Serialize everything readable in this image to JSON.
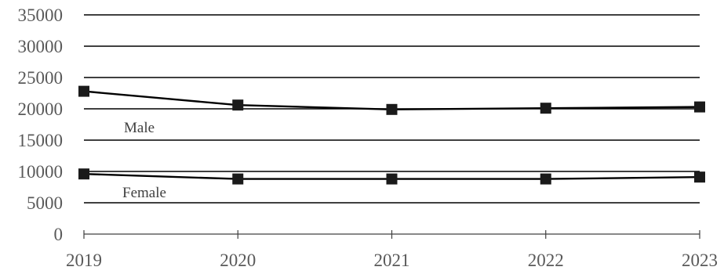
{
  "chart_data": {
    "type": "line",
    "x": [
      2019,
      2020,
      2021,
      2022,
      2023
    ],
    "x_tick_labels": [
      "2019",
      "2020",
      "2021",
      "2022",
      "2023"
    ],
    "y_tick_labels": [
      "0",
      "5000",
      "10000",
      "15000",
      "20000",
      "25000",
      "30000",
      "35000"
    ],
    "ylim": [
      0,
      35000
    ],
    "grid": true,
    "legend": "none",
    "series": [
      {
        "name": "Male",
        "values": [
          22800,
          20600,
          19900,
          20100,
          20300
        ]
      },
      {
        "name": "Female",
        "values": [
          9600,
          8800,
          8800,
          8800,
          9100
        ]
      }
    ],
    "annotations": [
      "Male",
      "Female"
    ],
    "colors": {
      "line": "#000000",
      "marker": "#1a1a1a",
      "grid": "#000000",
      "text": "#595959"
    }
  }
}
